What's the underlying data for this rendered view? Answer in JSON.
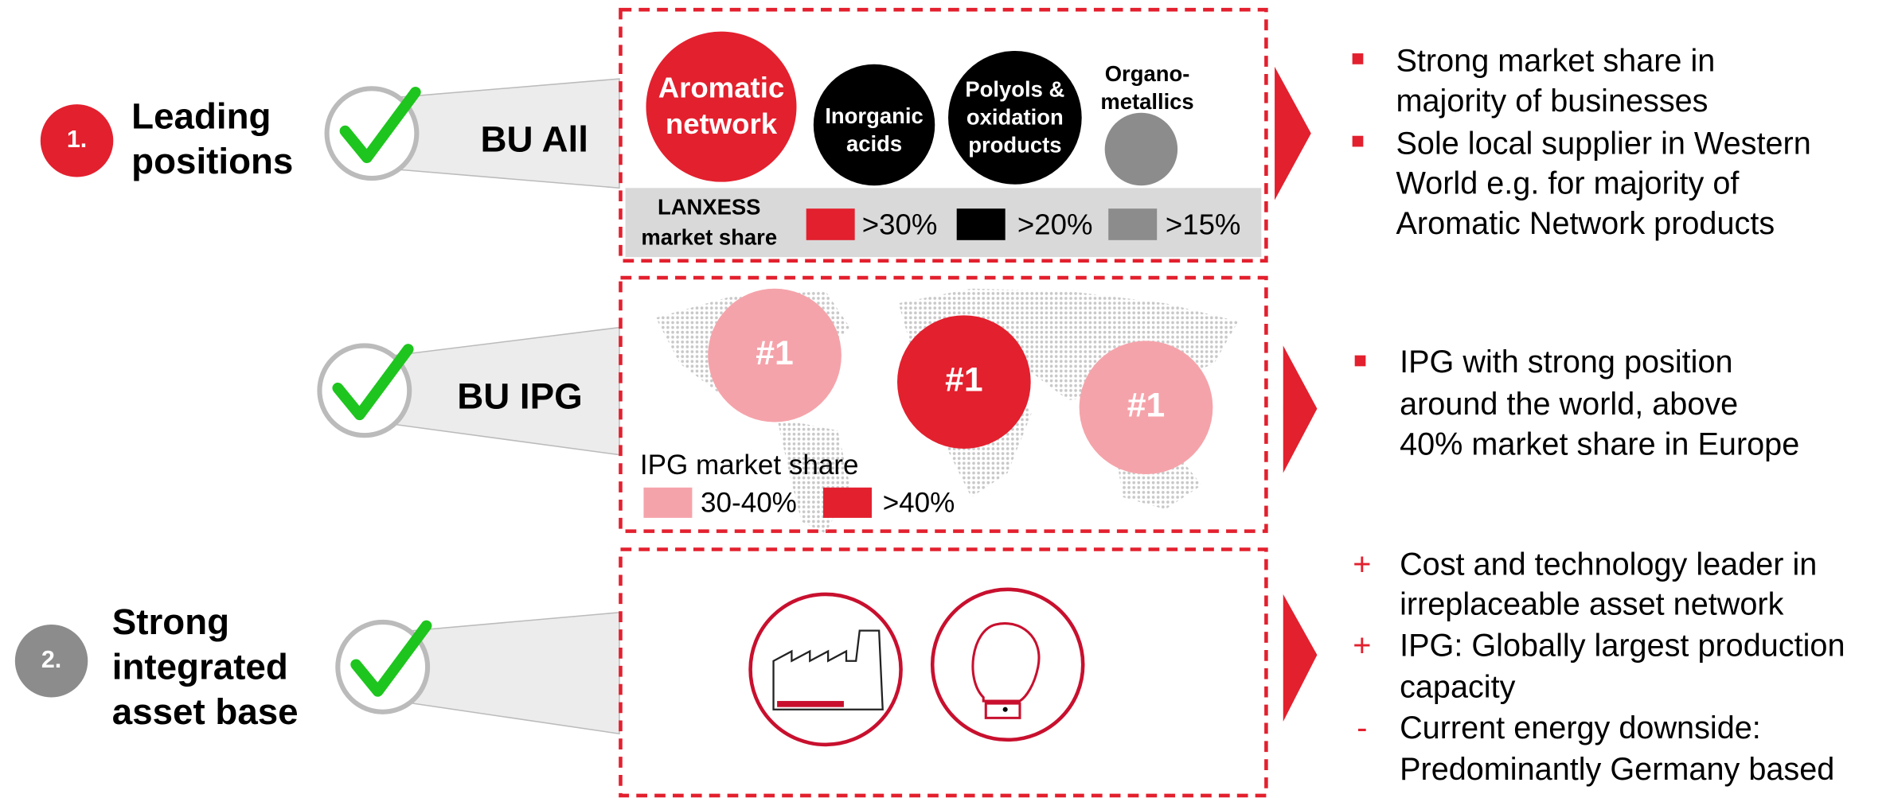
{
  "sections": [
    {
      "number": "1.",
      "title": [
        "Leading",
        "positions"
      ]
    },
    {
      "number": "2.",
      "title": [
        "Strong",
        "integrated",
        "asset base"
      ]
    }
  ],
  "bu_all": {
    "label": "BU All",
    "circles": [
      [
        "Aromatic",
        "network"
      ],
      [
        "Inorganic",
        "acids"
      ],
      [
        "Polyols &",
        "oxidation",
        "products"
      ],
      [
        "Organo-",
        "metallics"
      ]
    ],
    "legend_title": [
      "LANXESS",
      "market share"
    ],
    "legend": [
      ">30%",
      ">20%",
      ">15%"
    ]
  },
  "bu_ipg": {
    "label": "BU IPG",
    "circles": [
      "#1",
      "#1",
      "#1"
    ],
    "legend_title": "IPG market share",
    "legend": [
      "30-40%",
      ">40%"
    ]
  },
  "bullets_1": [
    [
      "Strong market share in",
      "majority of businesses"
    ],
    [
      "Sole local supplier in Western",
      "World e.g. for majority of",
      "Aromatic Network products"
    ]
  ],
  "bullets_2": [
    [
      "IPG with strong position",
      "around the world, above",
      "40% market share in Europe"
    ]
  ],
  "bullets_3": [
    {
      "marker": "+",
      "lines": [
        "Cost and technology leader in",
        "irreplaceable asset network"
      ]
    },
    {
      "marker": "+",
      "lines": [
        "IPG: Globally largest production",
        "capacity"
      ]
    },
    {
      "marker": "-",
      "lines": [
        "Current energy downside:",
        "Predominantly Germany based"
      ]
    }
  ]
}
